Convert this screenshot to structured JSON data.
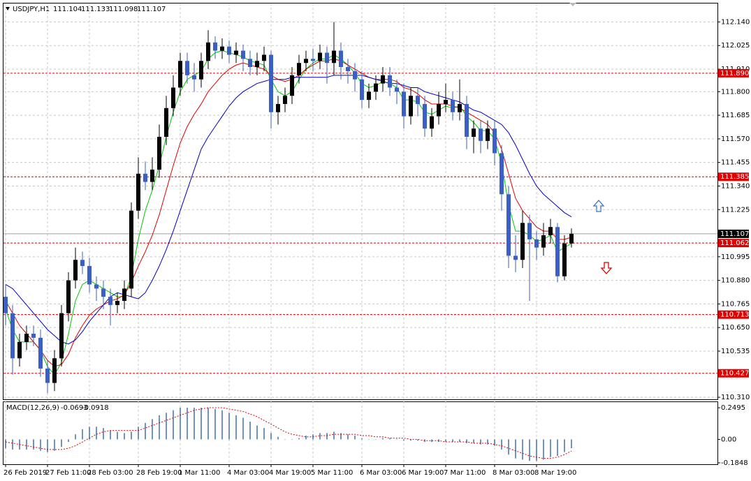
{
  "chart_data": [
    {
      "type": "candlestick",
      "title": "USDJPY,H1",
      "header_values": [
        111.104,
        111.133,
        111.098,
        111.107
      ],
      "categories": [
        "26 Feb 2019",
        null,
        null,
        null,
        null,
        null,
        "27 Feb 11:00",
        null,
        null,
        null,
        null,
        null,
        "28 Feb 03:00",
        null,
        null,
        null,
        null,
        null,
        null,
        "28 Feb 19:00",
        null,
        null,
        null,
        null,
        null,
        "1 Mar 11:00",
        null,
        null,
        null,
        null,
        null,
        null,
        "4 Mar 03:00",
        null,
        null,
        null,
        null,
        null,
        "4 Mar 19:00",
        null,
        null,
        null,
        null,
        null,
        "5 Mar 11:00",
        null,
        null,
        null,
        null,
        null,
        null,
        "6 Mar 03:00",
        null,
        null,
        null,
        null,
        null,
        "6 Mar 19:00",
        null,
        null,
        null,
        null,
        null,
        "7 Mar 11:00",
        null,
        null,
        null,
        null,
        null,
        null,
        "8 Mar 03:00",
        null,
        null,
        null,
        null,
        null,
        "8 Mar 19:00",
        null,
        null,
        null,
        null,
        null
      ],
      "open": [
        110.8,
        110.72,
        110.5,
        110.58,
        110.62,
        110.6,
        110.45,
        110.38,
        110.5,
        110.72,
        110.88,
        110.98,
        110.95,
        110.86,
        110.84,
        110.8,
        110.76,
        110.78,
        110.84,
        111.22,
        111.4,
        111.36,
        111.42,
        111.58,
        111.72,
        111.82,
        111.95,
        111.88,
        111.86,
        111.95,
        112.04,
        112.0,
        112.02,
        111.98,
        112.0,
        111.96,
        111.92,
        111.95,
        111.98,
        111.7,
        111.74,
        111.78,
        111.88,
        111.94,
        111.96,
        111.95,
        111.99,
        111.94,
        112.0,
        111.92,
        111.9,
        111.86,
        111.76,
        111.8,
        111.84,
        111.88,
        111.82,
        111.8,
        111.68,
        111.78,
        111.74,
        111.62,
        111.68,
        111.74,
        111.76,
        111.7,
        111.74,
        111.58,
        111.62,
        111.56,
        111.62,
        111.5,
        111.3,
        111.0,
        110.98,
        111.16,
        111.08,
        111.04,
        111.1,
        111.14,
        110.9,
        111.06
      ],
      "high": [
        110.86,
        110.76,
        110.62,
        110.66,
        110.66,
        110.64,
        110.49,
        110.54,
        110.76,
        110.92,
        111.04,
        111.02,
        110.99,
        110.9,
        110.88,
        110.84,
        110.82,
        110.88,
        111.26,
        111.48,
        111.46,
        111.48,
        111.64,
        111.78,
        111.88,
        111.99,
        111.99,
        111.94,
        111.99,
        112.1,
        112.07,
        112.06,
        112.05,
        112.04,
        112.03,
        112.0,
        111.99,
        112.02,
        112.0,
        111.78,
        111.82,
        111.92,
        111.98,
        112.0,
        112.01,
        112.03,
        112.02,
        112.14,
        112.04,
        111.96,
        111.94,
        111.9,
        111.84,
        111.88,
        111.92,
        111.92,
        111.86,
        111.84,
        111.82,
        111.82,
        111.78,
        111.72,
        111.8,
        111.84,
        111.8,
        111.86,
        111.78,
        111.66,
        111.66,
        111.66,
        111.66,
        111.54,
        111.34,
        111.1,
        111.22,
        111.2,
        111.12,
        111.16,
        111.18,
        111.16,
        111.1,
        111.133
      ],
      "low": [
        110.66,
        110.42,
        110.46,
        110.54,
        110.56,
        110.41,
        110.33,
        110.34,
        110.46,
        110.68,
        110.84,
        110.91,
        110.82,
        110.78,
        110.74,
        110.66,
        110.72,
        110.74,
        110.8,
        111.18,
        111.32,
        111.32,
        111.38,
        111.54,
        111.68,
        111.78,
        111.84,
        111.8,
        111.82,
        111.91,
        111.96,
        111.96,
        111.94,
        111.94,
        111.9,
        111.88,
        111.88,
        111.9,
        111.62,
        111.64,
        111.7,
        111.74,
        111.84,
        111.9,
        111.9,
        111.91,
        111.84,
        111.88,
        111.86,
        111.84,
        111.8,
        111.72,
        111.72,
        111.76,
        111.8,
        111.78,
        111.74,
        111.62,
        111.64,
        111.68,
        111.58,
        111.58,
        111.64,
        111.7,
        111.66,
        111.66,
        111.52,
        111.5,
        111.5,
        111.52,
        111.44,
        111.22,
        110.94,
        110.92,
        110.94,
        110.78,
        110.98,
        111.0,
        111.06,
        110.87,
        110.88,
        111.04
      ],
      "close": [
        110.72,
        110.5,
        110.58,
        110.62,
        110.6,
        110.45,
        110.38,
        110.5,
        110.72,
        110.88,
        110.98,
        110.95,
        110.86,
        110.84,
        110.8,
        110.76,
        110.78,
        110.84,
        111.22,
        111.4,
        111.36,
        111.42,
        111.58,
        111.72,
        111.82,
        111.95,
        111.88,
        111.86,
        111.95,
        112.04,
        112.0,
        112.02,
        111.98,
        112.0,
        111.96,
        111.92,
        111.95,
        111.98,
        111.7,
        111.74,
        111.78,
        111.88,
        111.94,
        111.96,
        111.95,
        111.99,
        111.94,
        112.0,
        111.92,
        111.9,
        111.86,
        111.76,
        111.8,
        111.84,
        111.88,
        111.82,
        111.8,
        111.68,
        111.78,
        111.74,
        111.62,
        111.68,
        111.74,
        111.76,
        111.7,
        111.74,
        111.58,
        111.62,
        111.56,
        111.62,
        111.5,
        111.3,
        111.0,
        110.98,
        111.16,
        111.08,
        111.04,
        111.1,
        111.14,
        110.9,
        111.06,
        111.107
      ],
      "up_color": "#000000",
      "down_color": "#3a5fc6",
      "series": [
        {
          "color": "#00c800",
          "values": [
            110.74,
            110.64,
            110.58,
            110.58,
            110.58,
            110.54,
            110.46,
            110.42,
            110.48,
            110.62,
            110.78,
            110.86,
            110.88,
            110.86,
            110.84,
            110.82,
            110.8,
            110.8,
            110.9,
            111.08,
            111.22,
            111.32,
            111.44,
            111.58,
            111.7,
            111.8,
            111.86,
            111.88,
            111.9,
            111.96,
            111.99,
            112.0,
            111.99,
            111.98,
            111.97,
            111.95,
            111.94,
            111.93,
            111.86,
            111.8,
            111.78,
            111.8,
            111.86,
            111.91,
            111.94,
            111.96,
            111.96,
            111.98,
            111.96,
            111.93,
            111.89,
            111.84,
            111.82,
            111.83,
            111.85,
            111.84,
            111.82,
            111.76,
            111.76,
            111.75,
            111.7,
            111.69,
            111.71,
            111.73,
            111.72,
            111.73,
            111.68,
            111.65,
            111.61,
            111.61,
            111.57,
            111.45,
            111.25,
            111.12,
            111.12,
            111.1,
            111.07,
            111.08,
            111.1,
            111.02,
            111.04,
            111.06
          ]
        },
        {
          "color": "#e00000",
          "values": [
            110.78,
            110.72,
            110.66,
            110.62,
            110.58,
            110.54,
            110.49,
            110.46,
            110.47,
            110.52,
            110.6,
            110.66,
            110.71,
            110.74,
            110.76,
            110.78,
            110.79,
            110.81,
            110.87,
            110.95,
            111.02,
            111.1,
            111.2,
            111.32,
            111.44,
            111.55,
            111.63,
            111.69,
            111.74,
            111.8,
            111.84,
            111.88,
            111.91,
            111.93,
            111.94,
            111.93,
            111.92,
            111.91,
            111.88,
            111.86,
            111.85,
            111.86,
            111.88,
            111.91,
            111.93,
            111.95,
            111.95,
            111.96,
            111.95,
            111.93,
            111.91,
            111.89,
            111.87,
            111.86,
            111.86,
            111.86,
            111.85,
            111.82,
            111.81,
            111.79,
            111.76,
            111.74,
            111.74,
            111.74,
            111.73,
            111.72,
            111.7,
            111.68,
            111.66,
            111.64,
            111.6,
            111.52,
            111.4,
            111.28,
            111.22,
            111.18,
            111.14,
            111.12,
            111.12,
            111.08,
            111.08,
            111.09
          ]
        },
        {
          "color": "#0000c8",
          "values": [
            110.86,
            110.84,
            110.8,
            110.76,
            110.72,
            110.68,
            110.64,
            110.61,
            110.58,
            110.57,
            110.59,
            110.63,
            110.68,
            110.72,
            110.76,
            110.8,
            110.82,
            110.81,
            110.8,
            110.79,
            110.82,
            110.88,
            110.95,
            111.03,
            111.12,
            111.22,
            111.32,
            111.42,
            111.52,
            111.58,
            111.63,
            111.68,
            111.73,
            111.77,
            111.8,
            111.82,
            111.84,
            111.85,
            111.86,
            111.86,
            111.86,
            111.87,
            111.87,
            111.87,
            111.87,
            111.87,
            111.87,
            111.88,
            111.88,
            111.88,
            111.88,
            111.88,
            111.87,
            111.86,
            111.85,
            111.84,
            111.84,
            111.83,
            111.82,
            111.82,
            111.8,
            111.79,
            111.78,
            111.77,
            111.76,
            111.75,
            111.73,
            111.71,
            111.7,
            111.68,
            111.66,
            111.64,
            111.6,
            111.54,
            111.47,
            111.4,
            111.34,
            111.3,
            111.27,
            111.24,
            111.21,
            111.19
          ]
        }
      ],
      "levels": [
        {
          "value": 111.89,
          "label": "111.890"
        },
        111.385,
        111.062,
        110.713,
        110.427
      ],
      "level_color": "#e00000",
      "current_price": 111.107,
      "ylim": [
        110.3,
        112.23
      ],
      "yticks": [
        {
          "value": 112.14,
          "label": "112.140"
        },
        112.025,
        {
          "value": 111.91,
          "label": "111.910"
        },
        {
          "value": 111.8,
          "label": "111.800"
        },
        111.685,
        {
          "value": 111.57,
          "label": "111.570"
        },
        111.455,
        {
          "value": 111.34,
          "label": "111.340"
        },
        111.225,
        110.995,
        {
          "value": 110.88,
          "label": "110.880"
        },
        110.765,
        {
          "value": 110.65,
          "label": "110.650"
        },
        110.535,
        {
          "value": 110.31,
          "label": "110.310"
        }
      ],
      "grid": true
    },
    {
      "type": "macd",
      "title": "MACD(12,26,9)",
      "series": [
        {
          "color": "#6f93c4",
          "values": [
            -0.07,
            -0.08,
            -0.08,
            -0.08,
            -0.08,
            -0.09,
            -0.1,
            -0.09,
            -0.06,
            -0.02,
            0.04,
            0.08,
            0.1,
            0.1,
            0.09,
            0.07,
            0.06,
            0.05,
            0.06,
            0.1,
            0.13,
            0.16,
            0.19,
            0.21,
            0.23,
            0.25,
            0.25,
            0.25,
            0.25,
            0.25,
            0.24,
            0.23,
            0.21,
            0.19,
            0.17,
            0.14,
            0.11,
            0.09,
            0.05,
            0.02,
            0.0,
            0.0,
            0.01,
            0.03,
            0.04,
            0.05,
            0.05,
            0.06,
            0.05,
            0.04,
            0.03,
            0.01,
            0.0,
            0.0,
            0.01,
            0.01,
            0.0,
            -0.01,
            -0.01,
            -0.01,
            -0.02,
            -0.02,
            -0.02,
            -0.02,
            -0.02,
            -0.02,
            -0.03,
            -0.03,
            -0.04,
            -0.04,
            -0.05,
            -0.08,
            -0.12,
            -0.15,
            -0.16,
            -0.17,
            -0.17,
            -0.16,
            -0.14,
            -0.13,
            -0.1,
            -0.0693
          ]
        },
        {
          "color": "#e00000",
          "values": [
            -0.02,
            -0.03,
            -0.04,
            -0.05,
            -0.06,
            -0.07,
            -0.08,
            -0.08,
            -0.08,
            -0.07,
            -0.05,
            -0.02,
            0.01,
            0.04,
            0.06,
            0.07,
            0.07,
            0.07,
            0.07,
            0.07,
            0.09,
            0.11,
            0.13,
            0.15,
            0.17,
            0.19,
            0.21,
            0.23,
            0.24,
            0.25,
            0.25,
            0.25,
            0.24,
            0.23,
            0.22,
            0.2,
            0.18,
            0.15,
            0.12,
            0.09,
            0.06,
            0.04,
            0.03,
            0.02,
            0.02,
            0.03,
            0.03,
            0.04,
            0.04,
            0.04,
            0.04,
            0.03,
            0.03,
            0.02,
            0.02,
            0.01,
            0.01,
            0.01,
            0.0,
            0.0,
            -0.01,
            -0.01,
            -0.01,
            -0.02,
            -0.02,
            -0.02,
            -0.02,
            -0.03,
            -0.03,
            -0.03,
            -0.04,
            -0.05,
            -0.07,
            -0.09,
            -0.11,
            -0.13,
            -0.14,
            -0.15,
            -0.15,
            -0.14,
            -0.12,
            -0.0918
          ]
        }
      ],
      "ylim": [
        -0.196,
        0.294
      ],
      "yticks": [
        0.2495,
        {
          "value": 0,
          "label": "0.00"
        },
        -0.1848
      ]
    }
  ]
}
